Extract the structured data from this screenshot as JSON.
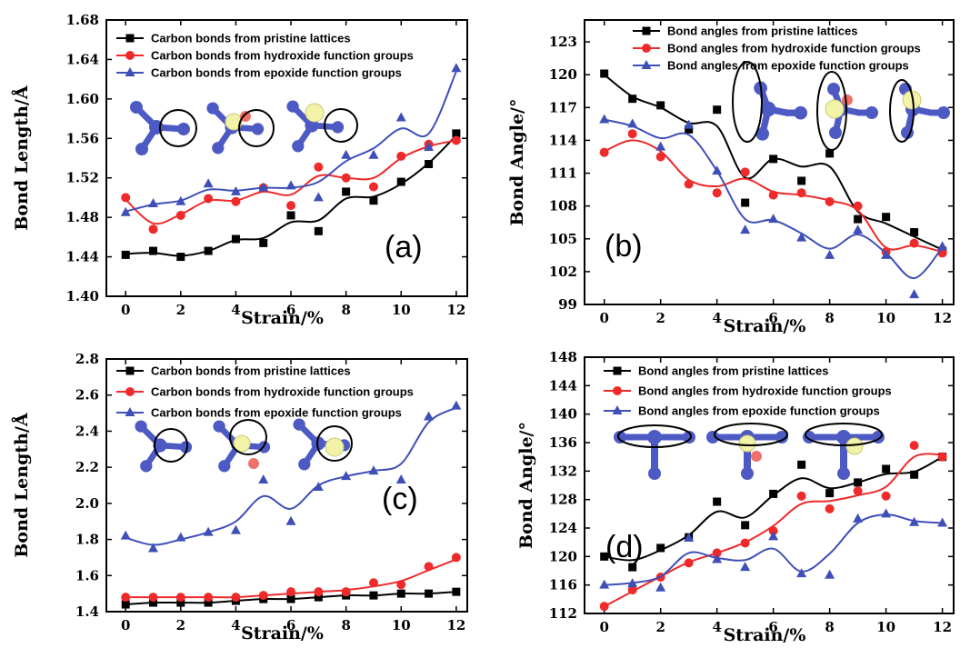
{
  "colors": {
    "pristine": "#000000",
    "hydroxide": "#ee2a2a",
    "epoxide": "#3f4fb8",
    "atom": "#4d5ac4",
    "oxygen_dot": "#f0706a",
    "hydrogen_cloud": "#f3f3a8"
  },
  "chart_data": [
    {
      "panel": "a",
      "type": "line",
      "panel_label": "(a)",
      "xlabel": "Strain/%",
      "ylabel": "Bond Length/Å",
      "xlim": [
        -0.7,
        12.4
      ],
      "ylim": [
        1.4,
        1.68
      ],
      "xticks": [
        0,
        2,
        4,
        6,
        8,
        10,
        12
      ],
      "yticks": [
        1.4,
        1.44,
        1.48,
        1.52,
        1.56,
        1.6,
        1.64,
        1.68
      ],
      "ytick_decimals": 2,
      "legend_position": "top-left",
      "marker_x": [
        0,
        1,
        2,
        3,
        4,
        5,
        6,
        7,
        8,
        9,
        10,
        11,
        12
      ],
      "series": [
        {
          "name": "Carbon bonds from pristine lattices",
          "color_key": "pristine",
          "marker": "square",
          "values": [
            1.442,
            1.446,
            1.44,
            1.446,
            1.458,
            1.454,
            1.482,
            1.466,
            1.506,
            1.497,
            1.516,
            1.534,
            1.565
          ],
          "smooth": [
            1.443,
            1.444,
            1.441,
            1.446,
            1.457,
            1.459,
            1.475,
            1.477,
            1.499,
            1.501,
            1.514,
            1.535,
            1.563
          ]
        },
        {
          "name": "Carbon bonds from hydroxide function groups",
          "color_key": "hydroxide",
          "marker": "circle",
          "values": [
            1.5,
            1.468,
            1.482,
            1.499,
            1.496,
            1.51,
            1.492,
            1.531,
            1.52,
            1.511,
            1.542,
            1.554,
            1.558
          ],
          "smooth": [
            1.498,
            1.474,
            1.483,
            1.497,
            1.497,
            1.506,
            1.503,
            1.522,
            1.52,
            1.52,
            1.54,
            1.552,
            1.558
          ]
        },
        {
          "name": "Carbon bonds from epoxide function groups",
          "color_key": "epoxide",
          "marker": "triangle",
          "values": [
            1.485,
            1.494,
            1.496,
            1.514,
            1.506,
            1.51,
            1.512,
            1.5,
            1.543,
            1.543,
            1.581,
            1.551,
            1.631
          ],
          "smooth": [
            1.486,
            1.493,
            1.497,
            1.508,
            1.507,
            1.51,
            1.51,
            1.516,
            1.537,
            1.55,
            1.57,
            1.565,
            1.628
          ]
        }
      ]
    },
    {
      "panel": "b",
      "type": "line",
      "panel_label": "(b)",
      "xlabel": "Strain/%",
      "ylabel": "Bond Angle/°",
      "xlim": [
        -0.7,
        12.4
      ],
      "ylim": [
        99,
        125
      ],
      "xticks": [
        0,
        2,
        4,
        6,
        8,
        10,
        12
      ],
      "yticks": [
        99,
        102,
        105,
        108,
        111,
        114,
        117,
        120,
        123
      ],
      "ytick_decimals": 0,
      "legend_position": "top-right",
      "marker_x": [
        0,
        1,
        2,
        3,
        4,
        5,
        6,
        7,
        8,
        9,
        10,
        11,
        12
      ],
      "series": [
        {
          "name": "Bond angles from pristine lattices",
          "color_key": "pristine",
          "marker": "square",
          "values": [
            120.1,
            117.8,
            117.2,
            115.0,
            116.8,
            108.3,
            112.3,
            110.3,
            112.8,
            106.8,
            107.0,
            105.6,
            103.9
          ],
          "smooth": [
            120.0,
            118.0,
            117.0,
            115.6,
            115.3,
            110.6,
            112.3,
            111.6,
            111.6,
            107.5,
            106.4,
            105.2,
            104.0
          ]
        },
        {
          "name": "Bond angles from hydroxide function groups",
          "color_key": "hydroxide",
          "marker": "circle",
          "values": [
            112.9,
            114.6,
            112.5,
            110.0,
            109.2,
            111.1,
            109.0,
            109.2,
            108.4,
            108.0,
            103.8,
            104.6,
            103.7
          ],
          "smooth": [
            113.0,
            114.0,
            113.0,
            110.4,
            109.8,
            110.5,
            109.3,
            109.0,
            108.5,
            107.6,
            104.2,
            104.4,
            103.8
          ]
        },
        {
          "name": "Bond angles from epoxide function groups",
          "color_key": "epoxide",
          "marker": "triangle",
          "values": [
            115.9,
            115.5,
            113.4,
            115.4,
            111.2,
            105.8,
            106.8,
            105.1,
            103.5,
            105.8,
            103.5,
            99.9,
            104.3
          ],
          "smooth": [
            115.9,
            115.3,
            114.2,
            114.5,
            111.2,
            106.8,
            106.7,
            105.5,
            104.1,
            105.4,
            103.7,
            101.4,
            104.2
          ]
        }
      ]
    },
    {
      "panel": "c",
      "type": "line",
      "panel_label": "(c)",
      "xlabel": "Strain/%",
      "ylabel": "Bond Length/Å",
      "xlim": [
        -0.7,
        12.4
      ],
      "ylim": [
        1.4,
        2.8
      ],
      "xticks": [
        0,
        2,
        4,
        6,
        8,
        10,
        12
      ],
      "yticks": [
        1.4,
        1.6,
        1.8,
        2.0,
        2.2,
        2.4,
        2.6,
        2.8
      ],
      "ytick_decimals": 1,
      "legend_position": "top-left",
      "marker_x": [
        0,
        1,
        2,
        3,
        4,
        5,
        6,
        7,
        8,
        9,
        10,
        11,
        12
      ],
      "series": [
        {
          "name": "Carbon bonds from pristine lattices",
          "color_key": "pristine",
          "marker": "square",
          "values": [
            1.44,
            1.45,
            1.45,
            1.45,
            1.46,
            1.47,
            1.47,
            1.48,
            1.49,
            1.49,
            1.5,
            1.5,
            1.51
          ],
          "smooth": [
            1.44,
            1.45,
            1.45,
            1.45,
            1.46,
            1.47,
            1.47,
            1.48,
            1.49,
            1.49,
            1.5,
            1.5,
            1.51
          ]
        },
        {
          "name": "Carbon bonds from hydroxide function groups",
          "color_key": "hydroxide",
          "marker": "circle",
          "values": [
            1.48,
            1.48,
            1.48,
            1.48,
            1.48,
            1.49,
            1.51,
            1.51,
            1.51,
            1.56,
            1.55,
            1.65,
            1.7
          ],
          "smooth": [
            1.48,
            1.48,
            1.48,
            1.48,
            1.48,
            1.49,
            1.5,
            1.51,
            1.52,
            1.54,
            1.57,
            1.63,
            1.69
          ]
        },
        {
          "name": "Carbon bonds from epoxide function groups",
          "color_key": "epoxide",
          "marker": "triangle",
          "values": [
            1.82,
            1.75,
            1.81,
            1.84,
            1.85,
            2.13,
            1.9,
            2.09,
            2.15,
            2.18,
            2.13,
            2.48,
            2.54
          ],
          "smooth": [
            1.81,
            1.77,
            1.8,
            1.84,
            1.9,
            2.04,
            1.97,
            2.1,
            2.15,
            2.18,
            2.22,
            2.45,
            2.53
          ]
        }
      ]
    },
    {
      "panel": "d",
      "type": "line",
      "panel_label": "(d)",
      "xlabel": "Strain/%",
      "ylabel": "Bond Angle/°",
      "xlim": [
        -0.7,
        12.4
      ],
      "ylim": [
        112,
        148
      ],
      "xticks": [
        0,
        2,
        4,
        6,
        8,
        10,
        12
      ],
      "yticks": [
        112,
        116,
        120,
        124,
        128,
        132,
        136,
        140,
        144,
        148
      ],
      "ytick_decimals": 0,
      "legend_position": "top-left",
      "marker_x": [
        0,
        1,
        2,
        3,
        4,
        5,
        6,
        7,
        8,
        9,
        10,
        11,
        12
      ],
      "series": [
        {
          "name": "Bond angles from pristine lattices",
          "color_key": "pristine",
          "marker": "square",
          "values": [
            120.0,
            118.5,
            121.2,
            122.7,
            127.7,
            124.4,
            128.8,
            132.9,
            128.9,
            130.4,
            132.3,
            131.5,
            134.0
          ],
          "smooth": [
            120.0,
            119.5,
            120.9,
            123.0,
            126.3,
            125.5,
            128.6,
            131.0,
            129.6,
            130.4,
            131.6,
            131.9,
            134.0
          ]
        },
        {
          "name": "Bond angles from hydroxide function groups",
          "color_key": "hydroxide",
          "marker": "circle",
          "values": [
            113.0,
            115.3,
            117.1,
            119.1,
            120.5,
            121.9,
            123.6,
            128.5,
            126.7,
            129.2,
            128.5,
            135.6,
            134.0
          ],
          "smooth": [
            113.0,
            115.1,
            117.2,
            119.2,
            120.5,
            122.0,
            124.3,
            127.4,
            127.8,
            128.6,
            129.8,
            134.0,
            134.3
          ]
        },
        {
          "name": "Bond angles from epoxide function groups",
          "color_key": "epoxide",
          "marker": "triangle",
          "values": [
            116.0,
            116.2,
            115.6,
            122.6,
            119.6,
            118.5,
            122.8,
            117.6,
            117.4,
            125.3,
            126.0,
            124.8,
            124.7
          ],
          "smooth": [
            116.0,
            116.3,
            117.2,
            120.5,
            119.8,
            119.5,
            121.1,
            117.9,
            120.4,
            124.7,
            125.9,
            125.0,
            124.7
          ]
        }
      ]
    }
  ]
}
